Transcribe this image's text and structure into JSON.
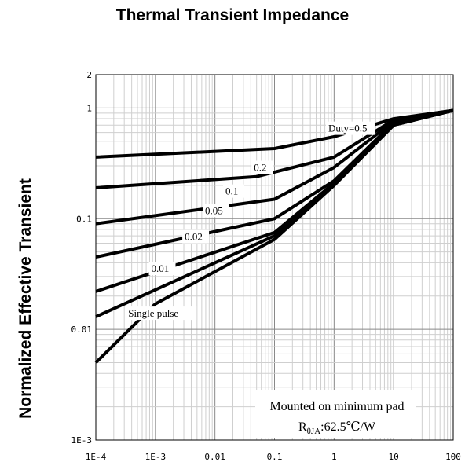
{
  "chart_data": {
    "type": "line",
    "title": "Thermal Transient Impedance",
    "ylabel": "Normalized Effective Transient",
    "xlabel": "",
    "xscale": "log",
    "yscale": "log",
    "xlim": [
      0.0001,
      100
    ],
    "ylim": [
      0.001,
      2
    ],
    "grid": true,
    "x_ticks": [
      "1E-4",
      "1E-3",
      "0.01",
      "0.1",
      "1",
      "10",
      "100"
    ],
    "y_ticks": [
      "2",
      "1",
      "0.1",
      "0.01",
      "1E-3"
    ],
    "series": [
      {
        "name": "Duty=0.5",
        "x": [
          0.0001,
          0.1,
          1,
          10,
          100
        ],
        "y": [
          0.36,
          0.43,
          0.55,
          0.8,
          0.95
        ]
      },
      {
        "name": "0.2",
        "x": [
          0.0001,
          0.05,
          1,
          10,
          100
        ],
        "y": [
          0.19,
          0.24,
          0.36,
          0.78,
          0.95
        ]
      },
      {
        "name": "0.1",
        "x": [
          0.0001,
          0.1,
          1,
          10,
          100
        ],
        "y": [
          0.09,
          0.15,
          0.29,
          0.76,
          0.95
        ]
      },
      {
        "name": "0.05",
        "x": [
          0.0001,
          0.1,
          1,
          10,
          100
        ],
        "y": [
          0.045,
          0.1,
          0.22,
          0.74,
          0.95
        ]
      },
      {
        "name": "0.02",
        "x": [
          0.0001,
          0.1,
          1,
          10,
          100
        ],
        "y": [
          0.022,
          0.075,
          0.21,
          0.72,
          0.95
        ]
      },
      {
        "name": "0.01",
        "x": [
          0.0001,
          0.1,
          1,
          10,
          100
        ],
        "y": [
          0.013,
          0.07,
          0.2,
          0.7,
          0.95
        ]
      },
      {
        "name": "Single pulse",
        "x": [
          0.0001,
          0.001,
          0.1,
          1,
          10,
          100
        ],
        "y": [
          0.005,
          0.017,
          0.065,
          0.2,
          0.7,
          0.95
        ]
      }
    ],
    "annotations": [
      "Mounted on minimum pad",
      "RθJA:62.5℃/W"
    ]
  },
  "annotation_note": {
    "line1": "Mounted on minimum pad",
    "line2_prefix": "R",
    "line2_sub": "θJA",
    "line2_suffix": ":62.5℃/W"
  }
}
